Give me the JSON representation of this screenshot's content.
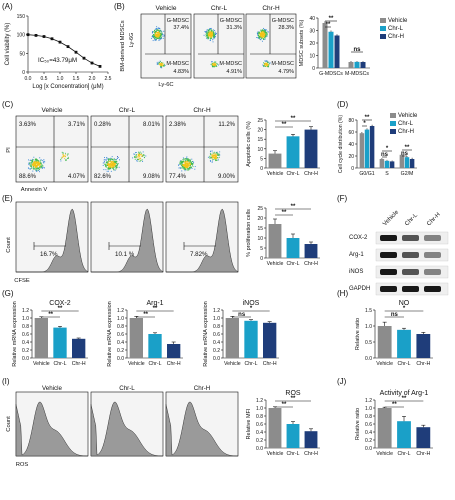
{
  "colors": {
    "vehicle": "#8c8c8c",
    "chr_l": "#1aa0c8",
    "chr_h": "#1f3d7a",
    "flow_bg": "#f4f4f4",
    "hist_fill": "#9a9a9a"
  },
  "legend": [
    "Vehicle",
    "Chr-L",
    "Chr-H"
  ],
  "panels": {
    "A": {
      "letter": "(A)",
      "ylabel": "Cell viability (%)",
      "xlabel": "Log [x Concentration] (μM)",
      "annotation": "IC₅₀=43.79μM",
      "yticks": [
        "150",
        "100",
        "50",
        "0"
      ],
      "xticks": [
        "0.0",
        "0.5",
        "1.0",
        "1.5",
        "2.0",
        "2.5"
      ]
    },
    "B": {
      "letter": "(B)",
      "ylabel_outer": "BM-derived MDSCs",
      "ylabel_inner": "Ly-6G",
      "xlabel": "Ly-6C",
      "plots": [
        {
          "title": "Vehicle",
          "g_label": "G-MDSC",
          "g_val": "37.4%",
          "m_label": "M-MDSC",
          "m_val": "4.83%"
        },
        {
          "title": "Chr-L",
          "g_label": "G-MDSC",
          "g_val": "31.3%",
          "m_label": "M-MDSC",
          "m_val": "4.91%"
        },
        {
          "title": "Chr-H",
          "g_label": "G-MDSC",
          "g_val": "28.3%",
          "m_label": "M-MDSC",
          "m_val": "4.79%"
        }
      ],
      "bar_ylabel": "MDSC subsets (%)",
      "yticks": [
        "40",
        "30",
        "20",
        "10",
        "0"
      ],
      "sig1": "**",
      "sig2": "**",
      "ns": "ns"
    },
    "C": {
      "letter": "(C)",
      "ylabel": "PI",
      "xlabel": "Annexin V",
      "plots": [
        {
          "title": "Vehicle",
          "ul": "3.63%",
          "ur": "3.71%",
          "ll": "88.6%",
          "lr": "4.07%"
        },
        {
          "title": "Chr-L",
          "ul": "0.28%",
          "ur": "8.01%",
          "ll": "82.6%",
          "lr": "9.08%"
        },
        {
          "title": "Chr-H",
          "ul": "2.38%",
          "ur": "11.2%",
          "ll": "77.4%",
          "lr": "9.00%"
        }
      ],
      "bar_ylabel": "Apoptotic cells (%)",
      "yticks": [
        "25",
        "20",
        "15",
        "10",
        "5",
        "0"
      ],
      "sig1": "**",
      "sig2": "**"
    },
    "D": {
      "letter": "(D)",
      "ylabel": "Cell cycle distribution (%)",
      "yticks": [
        "80",
        "60",
        "40",
        "20",
        "0"
      ],
      "sig": [
        "*",
        "**",
        "ns",
        "*",
        "ns",
        "**"
      ]
    },
    "E": {
      "letter": "(E)",
      "ylabel": "Count",
      "xlabel": "CFSE",
      "values": [
        "16.7%",
        "10.1 %",
        "7.82%"
      ],
      "bar_ylabel": "% proliferation cells",
      "yticks": [
        "25",
        "20",
        "15",
        "10",
        "5",
        "0"
      ],
      "sig1": "**",
      "sig2": "**"
    },
    "F": {
      "letter": "(F)",
      "lanes": [
        "Vehicle",
        "Chr-L",
        "Chr-H"
      ],
      "bands": [
        "COX-2",
        "Arg-1",
        "iNOS",
        "GAPDH"
      ]
    },
    "G": {
      "letter": "(G)",
      "charts": [
        {
          "title": "COX-2",
          "ylabel": "Relative mRNA expression",
          "yticks": [
            "1.2",
            "1.0",
            "0.8",
            "0.6",
            "0.4",
            "0.2",
            "0.0"
          ],
          "sig1": "**",
          "sig2": "**"
        },
        {
          "title": "Arg-1",
          "ylabel": "Relative mRNA expression",
          "yticks": [
            "1.2",
            "1.0",
            "0.8",
            "0.6",
            "0.4",
            "0.2",
            "0.0"
          ],
          "sig1": "**",
          "sig2": "**"
        },
        {
          "title": "iNOS",
          "ylabel": "Relative mRNA expression",
          "yticks": [
            "1.2",
            "1.0",
            "0.8",
            "0.6",
            "0.4",
            "0.2",
            "0.0"
          ],
          "sig1": "ns",
          "sig2": "*"
        }
      ]
    },
    "H": {
      "letter": "(H)",
      "title": "NO",
      "ylabel": "Relative ratio",
      "yticks": [
        "1.5",
        "1.0",
        "0.5",
        "0.0"
      ],
      "sig1": "ns",
      "sig2": "*"
    },
    "I": {
      "letter": "(I)",
      "ylabel": "Count",
      "xlabel": "ROS",
      "titles": [
        "Vehicle",
        "Chr-L",
        "Chr-H"
      ],
      "bar_title": "ROS",
      "bar_ylabel": "Relative MFI",
      "yticks": [
        "1.2",
        "1.0",
        "0.8",
        "0.6",
        "0.4",
        "0.2",
        "0.0"
      ],
      "sig1": "**",
      "sig2": "**"
    },
    "J": {
      "letter": "(J)",
      "title": "Activity of Arg-1",
      "ylabel": "Relative ratio",
      "yticks": [
        "1.2",
        "1.0",
        "0.8",
        "0.6",
        "0.4",
        "0.2",
        "0.0"
      ],
      "sig1": "**",
      "sig2": "**"
    }
  },
  "chart_data": [
    {
      "panel": "A",
      "type": "line",
      "x": [
        0.0,
        0.25,
        0.5,
        0.75,
        1.0,
        1.25,
        1.5,
        1.75,
        2.0,
        2.25
      ],
      "values": [
        100,
        98,
        95,
        89,
        80,
        68,
        53,
        37,
        24,
        15
      ],
      "xlim": [
        0,
        2.5
      ],
      "ylim": [
        0,
        150
      ]
    },
    {
      "panel": "B",
      "type": "bar",
      "categories": [
        "G-MDSCs",
        "M-MDSCs"
      ],
      "series": [
        {
          "name": "Vehicle",
          "values": [
            36,
            4.8
          ],
          "err": [
            1.5,
            0.8
          ]
        },
        {
          "name": "Chr-L",
          "values": [
            29,
            4.9
          ],
          "err": [
            1.0,
            0.7
          ]
        },
        {
          "name": "Chr-H",
          "values": [
            26,
            4.8
          ],
          "err": [
            1.0,
            0.7
          ]
        }
      ],
      "ylim": [
        0,
        40
      ]
    },
    {
      "panel": "C",
      "type": "bar",
      "categories": [
        "Vehicle",
        "Chr-L",
        "Chr-H"
      ],
      "values": [
        7.5,
        16.5,
        20
      ],
      "err": [
        1.5,
        1.0,
        1.5
      ],
      "ylim": [
        0,
        25
      ]
    },
    {
      "panel": "D",
      "type": "bar",
      "categories": [
        "G0/G1",
        "S",
        "G2/M"
      ],
      "series": [
        {
          "name": "Vehicle",
          "values": [
            58,
            15,
            22
          ],
          "err": [
            2,
            1.5,
            2
          ]
        },
        {
          "name": "Chr-L",
          "values": [
            64,
            12,
            18
          ],
          "err": [
            2,
            1.5,
            2
          ]
        },
        {
          "name": "Chr-H",
          "values": [
            70,
            11,
            15
          ],
          "err": [
            2,
            1.5,
            2
          ]
        }
      ],
      "ylim": [
        0,
        80
      ]
    },
    {
      "panel": "E",
      "type": "bar",
      "categories": [
        "Vehicle",
        "Chr-L",
        "Chr-H"
      ],
      "values": [
        17,
        10,
        7
      ],
      "err": [
        2.5,
        2,
        1
      ],
      "ylim": [
        0,
        25
      ]
    },
    {
      "panel": "G-COX-2",
      "type": "bar",
      "categories": [
        "Vehicle",
        "Chr-L",
        "Chr-H"
      ],
      "values": [
        1.0,
        0.76,
        0.48
      ],
      "err": [
        0.03,
        0.03,
        0.02
      ],
      "ylim": [
        0,
        1.2
      ]
    },
    {
      "panel": "G-Arg-1",
      "type": "bar",
      "categories": [
        "Vehicle",
        "Chr-L",
        "Chr-H"
      ],
      "values": [
        1.0,
        0.6,
        0.35
      ],
      "err": [
        0.04,
        0.03,
        0.05
      ],
      "ylim": [
        0,
        1.2
      ]
    },
    {
      "panel": "G-iNOS",
      "type": "bar",
      "categories": [
        "Vehicle",
        "Chr-L",
        "Chr-H"
      ],
      "values": [
        1.0,
        0.93,
        0.88
      ],
      "err": [
        0.04,
        0.03,
        0.03
      ],
      "ylim": [
        0,
        1.2
      ]
    },
    {
      "panel": "H",
      "type": "bar",
      "categories": [
        "Vehicle",
        "Chr-L",
        "Chr-H"
      ],
      "values": [
        1.0,
        0.88,
        0.75
      ],
      "err": [
        0.12,
        0.05,
        0.05
      ],
      "ylim": [
        0,
        1.5
      ]
    },
    {
      "panel": "I",
      "type": "bar",
      "categories": [
        "Vehicle",
        "Chr-L",
        "Chr-H"
      ],
      "values": [
        1.0,
        0.6,
        0.42
      ],
      "err": [
        0.03,
        0.06,
        0.06
      ],
      "ylim": [
        0,
        1.2
      ]
    },
    {
      "panel": "J",
      "type": "bar",
      "categories": [
        "Vehicle",
        "Chr-L",
        "Chr-H"
      ],
      "values": [
        1.0,
        0.67,
        0.52
      ],
      "err": [
        0.02,
        0.12,
        0.05
      ],
      "ylim": [
        0,
        1.2
      ]
    }
  ]
}
